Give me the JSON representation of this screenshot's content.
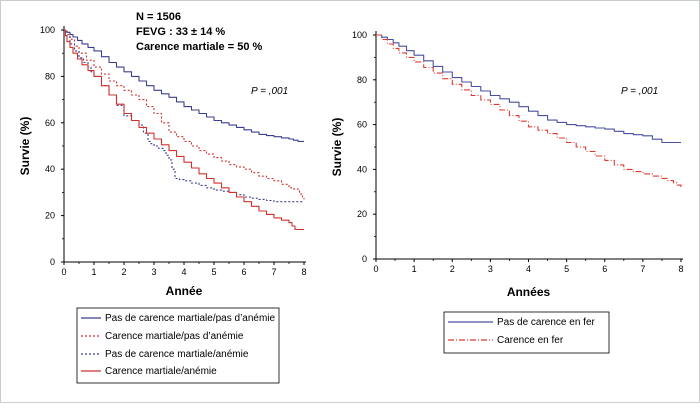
{
  "chart_data": [
    {
      "type": "line",
      "xlabel": "Année",
      "ylabel": "Survie (%)",
      "xlim": [
        0,
        8
      ],
      "ylim": [
        0,
        100
      ],
      "xticks": [
        "0",
        "1",
        "2",
        "3",
        "4",
        "5",
        "6",
        "7",
        "8"
      ],
      "yticks": [
        "0",
        "20",
        "40",
        "60",
        "80",
        "100"
      ],
      "annotations": [
        "N = 1506",
        "FEVG : 33 ± 14 %",
        "Carence martiale = 50 %"
      ],
      "p_value": "P = ,001",
      "legend_placement": "bottom",
      "series": [
        {
          "name": "Pas de carence martiale/pas d’anémie",
          "color": "#3b3f8f",
          "dash": "solid",
          "x": [
            0,
            0.1,
            0.3,
            0.6,
            1.0,
            1.5,
            2.0,
            2.5,
            3.0,
            3.5,
            4.0,
            4.5,
            5.0,
            5.5,
            6.0,
            6.5,
            7.0,
            7.5,
            7.8,
            8.0
          ],
          "y": [
            100,
            99,
            97,
            94,
            91,
            86,
            82,
            78,
            74,
            71,
            67,
            64,
            61,
            59,
            57,
            55,
            54,
            53,
            52,
            52
          ]
        },
        {
          "name": "Carence martiale/pas d’anémie",
          "color": "#d0312d",
          "dash": "dotted",
          "x": [
            0,
            0.2,
            0.5,
            1.0,
            1.5,
            2.0,
            2.5,
            3.0,
            3.5,
            4.0,
            4.5,
            5.0,
            5.5,
            6.0,
            6.5,
            7.0,
            7.5,
            7.8,
            7.9,
            8.0
          ],
          "y": [
            100,
            96,
            90,
            84,
            78,
            74,
            70,
            64,
            56,
            52,
            48,
            45,
            42,
            40,
            37,
            35,
            32,
            31,
            29,
            27
          ]
        },
        {
          "name": "Pas de carence martiale/anémie",
          "color": "#3b3f8f",
          "dash": "dotted",
          "x": [
            0,
            0.2,
            0.5,
            0.8,
            1.0,
            1.5,
            2.0,
            2.5,
            2.8,
            3.0,
            3.3,
            3.5,
            3.7,
            4.0,
            4.5,
            5.0,
            5.5,
            6.0,
            6.5,
            7.0,
            8.0
          ],
          "y": [
            100,
            94,
            88,
            84,
            80,
            72,
            63,
            59,
            52,
            50,
            48,
            44,
            36,
            35,
            33,
            31,
            30,
            28,
            27,
            26,
            26
          ]
        },
        {
          "name": "Carence martiale/anémie",
          "color": "#d0312d",
          "dash": "solid",
          "x": [
            0,
            0.1,
            0.3,
            0.6,
            1.0,
            1.5,
            2.0,
            2.5,
            3.0,
            3.5,
            4.0,
            4.5,
            5.0,
            5.5,
            6.0,
            6.5,
            7.0,
            7.5,
            7.7,
            8.0
          ],
          "y": [
            100,
            95,
            90,
            85,
            80,
            72,
            64,
            58,
            53,
            48,
            43,
            38,
            34,
            30,
            26,
            22,
            19,
            17,
            14,
            14
          ]
        }
      ]
    },
    {
      "type": "line",
      "xlabel": "Années",
      "ylabel": "Survie (%)",
      "xlim": [
        0,
        8
      ],
      "ylim": [
        0,
        100
      ],
      "xticks": [
        "0",
        "1",
        "2",
        "3",
        "4",
        "5",
        "6",
        "7",
        "8"
      ],
      "yticks": [
        "0",
        "20",
        "40",
        "60",
        "80",
        "100"
      ],
      "p_value": "P = ,001",
      "legend_placement": "bottom",
      "series": [
        {
          "name": "Pas de carence en fer",
          "color": "#4a4fa0",
          "dash": "solid",
          "x": [
            0,
            0.3,
            0.6,
            1.0,
            1.5,
            2.0,
            2.5,
            3.0,
            3.5,
            4.0,
            4.5,
            5.0,
            5.5,
            6.0,
            6.5,
            7.0,
            7.5,
            8.0
          ],
          "y": [
            100,
            98,
            95,
            91,
            86,
            81,
            77,
            73,
            70,
            66,
            62,
            60,
            59,
            58,
            56,
            55,
            52,
            52
          ]
        },
        {
          "name": "Carence en fer",
          "color": "#e03a30",
          "dash": "dashdot",
          "x": [
            0,
            0.3,
            0.6,
            1.0,
            1.5,
            2.0,
            2.5,
            3.0,
            3.5,
            4.0,
            4.5,
            5.0,
            5.5,
            6.0,
            6.5,
            7.0,
            7.5,
            7.8,
            8.0
          ],
          "y": [
            100,
            96,
            92,
            88,
            83,
            78,
            73,
            69,
            64,
            59,
            56,
            52,
            48,
            44,
            40,
            38,
            36,
            34,
            32
          ]
        }
      ]
    }
  ]
}
